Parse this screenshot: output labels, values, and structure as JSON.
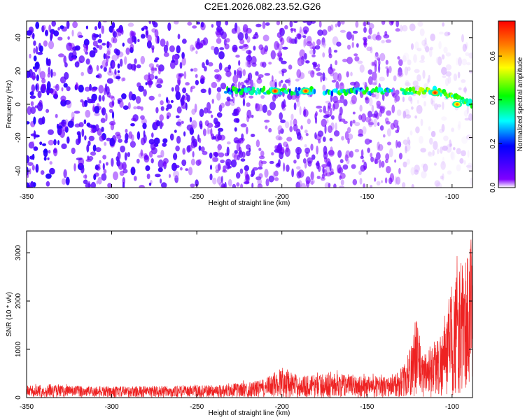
{
  "title": "C2E1.2026.082.23.52.G26",
  "chart_data": [
    {
      "type": "heatmap",
      "xlabel": "Height of straight line (km)",
      "ylabel": "Frequency (Hz)",
      "xlim": [
        -350,
        -88
      ],
      "ylim": [
        -50,
        50
      ],
      "x_ticks": [
        -350,
        -300,
        -250,
        -200,
        -150,
        -100
      ],
      "y_ticks": [
        -40,
        -20,
        0,
        20,
        40
      ],
      "colorbar": {
        "label": "Normalized spectral amplitude",
        "range": [
          0,
          0.76
        ],
        "ticks": [
          0.0,
          0.2,
          0.4,
          0.6
        ],
        "colors": [
          "#ffffff",
          "#8000ff",
          "#0000ff",
          "#00ffff",
          "#00ff00",
          "#ffff00",
          "#ff8000",
          "#ff0000"
        ]
      },
      "signal_band": {
        "center_frequency_hz": 8,
        "strong_segments_km": [
          [
            -233,
            -180
          ],
          [
            -175,
            -135
          ],
          [
            -130,
            -88
          ]
        ],
        "peak_points": [
          {
            "x": -204,
            "y": 8,
            "amp": 0.72
          },
          {
            "x": -186,
            "y": 8,
            "amp": 0.7
          },
          {
            "x": -110,
            "y": 7,
            "amp": 0.72
          },
          {
            "x": -97,
            "y": 0,
            "amp": 0.65
          }
        ]
      },
      "noise_background_amp": 0.1,
      "noise_extent_km": [
        -350,
        -130
      ]
    },
    {
      "type": "line",
      "xlabel": "Height of straight line (km)",
      "ylabel": "SNR (10 * v/v)",
      "xlim": [
        -350,
        -88
      ],
      "ylim": [
        0,
        3450
      ],
      "x_ticks": [
        -350,
        -300,
        -250,
        -200,
        -150,
        -100
      ],
      "y_ticks": [
        0,
        1000,
        2000,
        3000
      ],
      "series": [
        {
          "color": "#ee2222",
          "envelope": [
            {
              "x": -350,
              "y": 250
            },
            {
              "x": -330,
              "y": 260
            },
            {
              "x": -300,
              "y": 230
            },
            {
              "x": -280,
              "y": 240
            },
            {
              "x": -260,
              "y": 240
            },
            {
              "x": -240,
              "y": 260
            },
            {
              "x": -220,
              "y": 320
            },
            {
              "x": -210,
              "y": 380
            },
            {
              "x": -200,
              "y": 650
            },
            {
              "x": -190,
              "y": 450
            },
            {
              "x": -170,
              "y": 500
            },
            {
              "x": -150,
              "y": 460
            },
            {
              "x": -135,
              "y": 430
            },
            {
              "x": -128,
              "y": 700
            },
            {
              "x": -124,
              "y": 1100
            },
            {
              "x": -121,
              "y": 1800
            },
            {
              "x": -118,
              "y": 900
            },
            {
              "x": -113,
              "y": 1100
            },
            {
              "x": -108,
              "y": 1300
            },
            {
              "x": -104,
              "y": 1500
            },
            {
              "x": -100,
              "y": 2300
            },
            {
              "x": -96,
              "y": 2700
            },
            {
              "x": -92,
              "y": 3000
            },
            {
              "x": -89,
              "y": 3300
            }
          ]
        }
      ]
    }
  ]
}
